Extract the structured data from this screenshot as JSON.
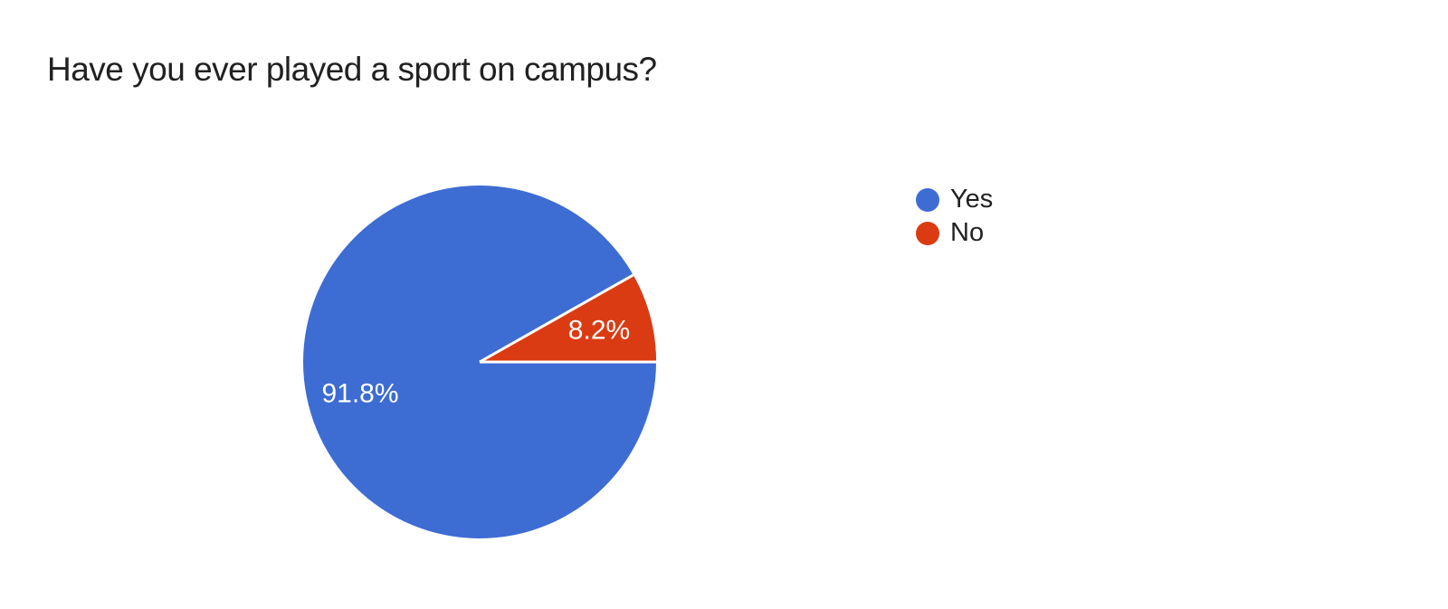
{
  "title": {
    "text": "Have you ever played a sport on campus?"
  },
  "chart_data": {
    "type": "pie",
    "title": "Have you ever played a sport on campus?",
    "categories": [
      "Yes",
      "No"
    ],
    "values": [
      91.8,
      8.2
    ],
    "slice_labels": [
      "91.8%",
      "8.2%"
    ],
    "colors": [
      "#3d6cd3",
      "#db3b13"
    ],
    "legend_position": "right",
    "start_angle": "east",
    "separator_color": "#ffffff",
    "label_color": "#ffffff"
  },
  "colors": {
    "background": "#ffffff",
    "title_text": "#212121",
    "legend_text": "#212121"
  }
}
